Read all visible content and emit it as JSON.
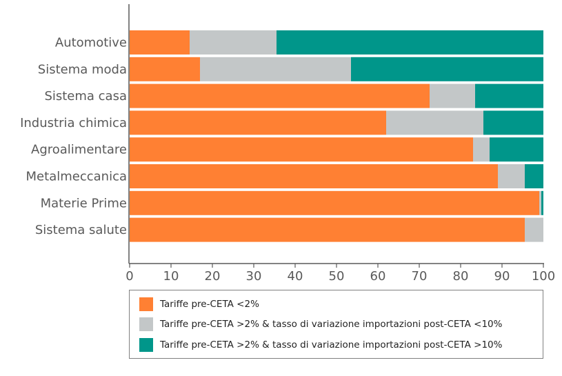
{
  "chart_data": {
    "type": "bar",
    "orientation": "horizontal",
    "stacked": true,
    "categories": [
      "Automotive",
      "Sistema moda",
      "Sistema casa",
      "Industria chimica",
      "Agroalimentare",
      "Metalmeccanica",
      "Materie Prime",
      "Sistema salute"
    ],
    "series": [
      {
        "name": "Tariffe pre-CETA <2%",
        "color": "#FF8033",
        "values": [
          14.5,
          17,
          72.5,
          62,
          83,
          89,
          99,
          95.5
        ]
      },
      {
        "name": "Tariffe pre-CETA >2% & tasso di variazione importazioni post-CETA <10%",
        "color": "#C3C7C8",
        "values": [
          21,
          36.5,
          11,
          23.5,
          4,
          6.5,
          0.5,
          4.5
        ]
      },
      {
        "name": "Tariffe pre-CETA >2% & tasso di variazione importazioni post-CETA >10%",
        "color": "#00968A",
        "values": [
          64.5,
          46.5,
          16.5,
          14.5,
          13,
          4.5,
          0.5,
          0
        ]
      }
    ],
    "xlim": [
      0,
      100
    ],
    "xticks": [
      "0",
      "10",
      "20",
      "30",
      "40",
      "50",
      "60",
      "70",
      "80",
      "90",
      "100"
    ],
    "grid": false,
    "legend_position": "bottom"
  }
}
